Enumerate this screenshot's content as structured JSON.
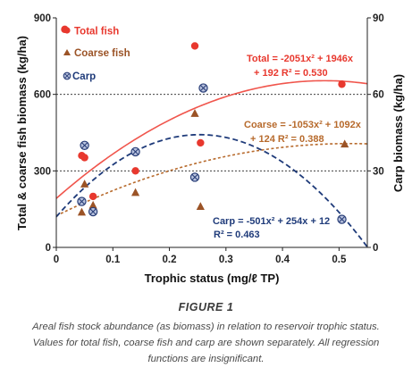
{
  "figure": {
    "title": "FIGURE 1",
    "caption": "Areal fish stock abundance (as biomass) in relation to reservoir trophic status. Values for total fish, coarse fish and carp are shown separately. All regression functions are insignificant."
  },
  "colors": {
    "total": "#e8382e",
    "coarse": "#9b5326",
    "carp_line": "#1f3b7a",
    "carp_marker_fill": "#b9c3df",
    "carp_marker_edge": "#2a3f78",
    "total_curve": "#f0554c",
    "coarse_curve": "#b76a2c",
    "grid": "#222222",
    "axis": "#222222"
  },
  "chart_data": {
    "type": "scatter",
    "xlabel": "Trophic status (mg/ℓ TP)",
    "ylabel_left": "Total & coarse fish biomass (kg/ha)",
    "ylabel_right": "Carp biomass (kg/ha)",
    "xlim": [
      0,
      0.55
    ],
    "ylim_left": [
      0,
      900
    ],
    "ylim_right": [
      0,
      90
    ],
    "x_ticks": [
      "0",
      "0.1",
      "0.2",
      "0.3",
      "0.4",
      "0.5"
    ],
    "x_tick_values": [
      0,
      0.1,
      0.2,
      0.3,
      0.4,
      0.5
    ],
    "y_left_ticks": [
      "0",
      "300",
      "600",
      "900"
    ],
    "y_left_tick_values": [
      0,
      300,
      600,
      900
    ],
    "y_right_ticks": [
      "0",
      "30",
      "60",
      "90"
    ],
    "y_right_tick_values": [
      0,
      30,
      60,
      90
    ],
    "gridlines_at_left": [
      300,
      600
    ],
    "legend_position": "top-left",
    "series": [
      {
        "name": "Total fish",
        "axis": "left",
        "marker": "circle",
        "points": [
          [
            0.015,
            855
          ],
          [
            0.045,
            360
          ],
          [
            0.05,
            352
          ],
          [
            0.065,
            200
          ],
          [
            0.14,
            300
          ],
          [
            0.245,
            790
          ],
          [
            0.255,
            410
          ],
          [
            0.505,
            640
          ]
        ]
      },
      {
        "name": "Coarse fish",
        "axis": "left",
        "marker": "triangle",
        "points": [
          [
            0.045,
            138
          ],
          [
            0.05,
            248
          ],
          [
            0.065,
            165
          ],
          [
            0.14,
            215
          ],
          [
            0.245,
            525
          ],
          [
            0.255,
            160
          ],
          [
            0.51,
            405
          ]
        ]
      },
      {
        "name": "Carp",
        "axis": "right",
        "marker": "crossed-circle",
        "points": [
          [
            0.045,
            18
          ],
          [
            0.05,
            40
          ],
          [
            0.065,
            14
          ],
          [
            0.14,
            37.5
          ],
          [
            0.245,
            27.5
          ],
          [
            0.26,
            62.5
          ],
          [
            0.505,
            11
          ]
        ]
      }
    ],
    "regressions": [
      {
        "series": "Total fish",
        "axis": "left",
        "coefficients": [
          -2051,
          1946,
          192
        ],
        "x_range": [
          0,
          0.55
        ],
        "style": "solid",
        "label_line1": "Total = -2051x² + 1946x",
        "label_line2": "+ 192 R² = 0.530"
      },
      {
        "series": "Coarse fish",
        "axis": "left",
        "coefficients": [
          -1053,
          1092,
          124
        ],
        "x_range": [
          0,
          0.55
        ],
        "style": "dashed",
        "label_line1": "Coarse = -1053x² + 1092x",
        "label_line2": "+ 124 R² = 0.388"
      },
      {
        "series": "Carp",
        "axis": "right",
        "coefficients": [
          -501,
          254,
          12
        ],
        "x_range": [
          0,
          0.55
        ],
        "style": "dashed",
        "label_line1": "Carp = -501x² + 254x + 12",
        "label_line2": "R² = 0.463"
      }
    ]
  }
}
